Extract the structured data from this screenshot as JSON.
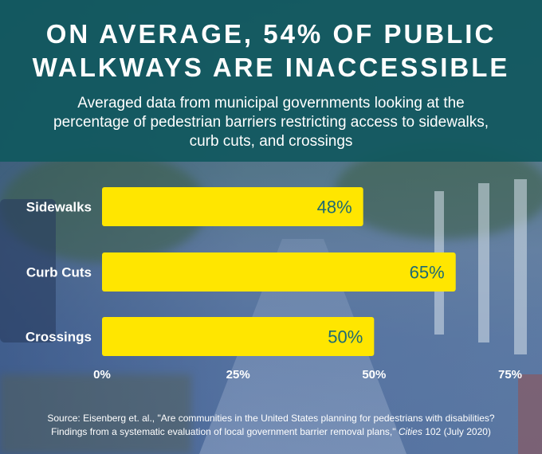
{
  "title_line1": "ON AVERAGE, 54% OF PUBLIC",
  "title_line2": "WALKWAYS ARE INACCESSIBLE",
  "subtitle_line1": "Averaged data from municipal governments looking at the",
  "subtitle_line2": "percentage of pedestrian barriers restricting access to sidewalks,",
  "subtitle_line3": "curb cuts, and crossings",
  "chart_data": {
    "type": "bar",
    "orientation": "horizontal",
    "categories": [
      "Sidewalks",
      "Curb Cuts",
      "Crossings"
    ],
    "values": [
      48,
      65,
      50
    ],
    "value_labels": [
      "48%",
      "65%",
      "50%"
    ],
    "xlim": [
      0,
      75
    ],
    "xticks": [
      "0%",
      "25%",
      "50%",
      "75%"
    ],
    "xtick_values": [
      0,
      25,
      50,
      75
    ],
    "grid": false,
    "bar_color": "#ffe600",
    "label_color": "#1d6a74"
  },
  "source": {
    "prefix": "Source:  Eisenberg et. al., \"Are communities in the United States planning for pedestrians with disabilities?",
    "line2": "Findings from a systematic evaluation of local government barrier removal plans,\"",
    "journal": "Cities",
    "suffix": " 102 (July 2020)"
  },
  "colors": {
    "header_bg": "#11585f",
    "text": "#ffffff"
  }
}
